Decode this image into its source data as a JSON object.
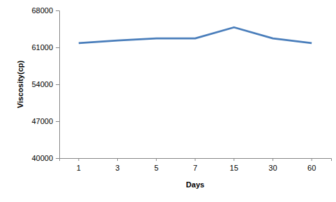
{
  "chart_data": {
    "type": "line",
    "x_label": "Days",
    "y_label": "Viscosity(cp)",
    "categories": [
      "1",
      "3",
      "5",
      "7",
      "15",
      "30",
      "60"
    ],
    "values": [
      61800,
      62300,
      62700,
      62700,
      64800,
      62700,
      61800
    ],
    "color": "#4a7ebb",
    "ylim": [
      40000,
      68000
    ],
    "yticks": [
      40000,
      47000,
      54000,
      61000,
      68000
    ],
    "grid": false
  }
}
